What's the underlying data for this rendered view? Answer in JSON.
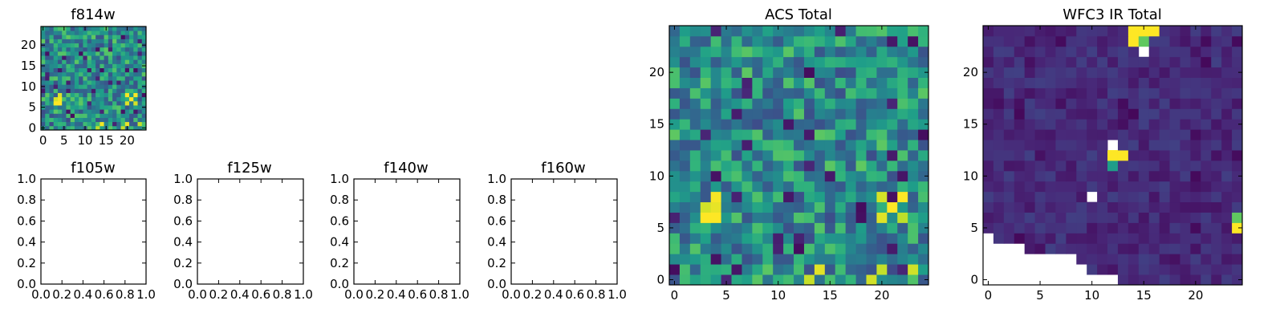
{
  "chart_data": [
    {
      "id": "f814w",
      "type": "heatmap",
      "title": "f814w",
      "grid_size": 25,
      "cmap": "viridis",
      "xticks": [
        "0",
        "5",
        "10",
        "15",
        "20"
      ],
      "yticks": [
        "0",
        "5",
        "10",
        "15",
        "20"
      ]
    },
    {
      "id": "f105w",
      "type": "empty",
      "title": "f105w",
      "xticks": [
        "0.0",
        "0.2",
        "0.4",
        "0.6",
        "0.8",
        "1.0"
      ],
      "yticks": [
        "0.0",
        "0.2",
        "0.4",
        "0.6",
        "0.8",
        "1.0"
      ]
    },
    {
      "id": "f125w",
      "type": "empty",
      "title": "f125w",
      "xticks": [
        "0.0",
        "0.2",
        "0.4",
        "0.6",
        "0.8",
        "1.0"
      ],
      "yticks": [
        "0.0",
        "0.2",
        "0.4",
        "0.6",
        "0.8",
        "1.0"
      ]
    },
    {
      "id": "f140w",
      "type": "empty",
      "title": "f140w",
      "xticks": [
        "0.0",
        "0.2",
        "0.4",
        "0.6",
        "0.8",
        "1.0"
      ],
      "yticks": [
        "0.0",
        "0.2",
        "0.4",
        "0.6",
        "0.8",
        "1.0"
      ]
    },
    {
      "id": "f160w",
      "type": "empty",
      "title": "f160w",
      "xticks": [
        "0.0",
        "0.2",
        "0.4",
        "0.6",
        "0.8",
        "1.0"
      ],
      "yticks": [
        "0.0",
        "0.2",
        "0.4",
        "0.6",
        "0.8",
        "1.0"
      ]
    },
    {
      "id": "acs",
      "type": "heatmap",
      "title": "ACS Total",
      "grid_size": 25,
      "cmap": "viridis",
      "xticks": [
        "0",
        "5",
        "10",
        "15",
        "20"
      ],
      "yticks": [
        "0",
        "5",
        "10",
        "15",
        "20"
      ]
    },
    {
      "id": "wfc3",
      "type": "heatmap",
      "title": "WFC3 IR Total",
      "grid_size": 25,
      "cmap": "viridis",
      "xticks": [
        "0",
        "5",
        "10",
        "15",
        "20"
      ],
      "yticks": [
        "0",
        "5",
        "10",
        "15",
        "20"
      ]
    }
  ],
  "colors": {
    "viridis_low": "#440154",
    "viridis_mid": "#21918c",
    "viridis_high": "#fde725",
    "nan": "#ffffff"
  }
}
